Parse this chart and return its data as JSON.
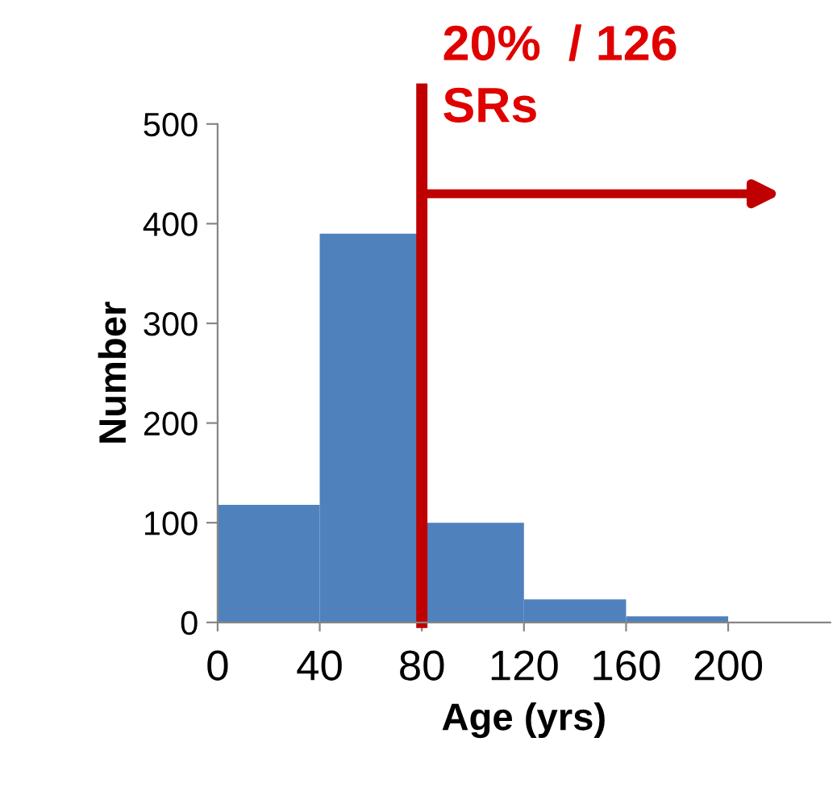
{
  "chart_data": {
    "type": "histogram",
    "xlabel": "Age (yrs)",
    "ylabel": "Number",
    "bins": [
      0,
      40,
      80,
      120,
      160,
      200
    ],
    "values": [
      118,
      390,
      100,
      23,
      6
    ],
    "color": "#4f81bd",
    "xlim": [
      0,
      240
    ],
    "xticks": [
      0,
      40,
      80,
      120,
      160,
      200
    ],
    "ylim": [
      0,
      500
    ],
    "yticks": [
      0,
      100,
      200,
      300,
      400,
      500
    ],
    "grid": false,
    "ref_lines": [
      {
        "axis": "x",
        "value": 80,
        "label": "20%  / 126\nSRs",
        "color": "#c00000"
      }
    ]
  }
}
